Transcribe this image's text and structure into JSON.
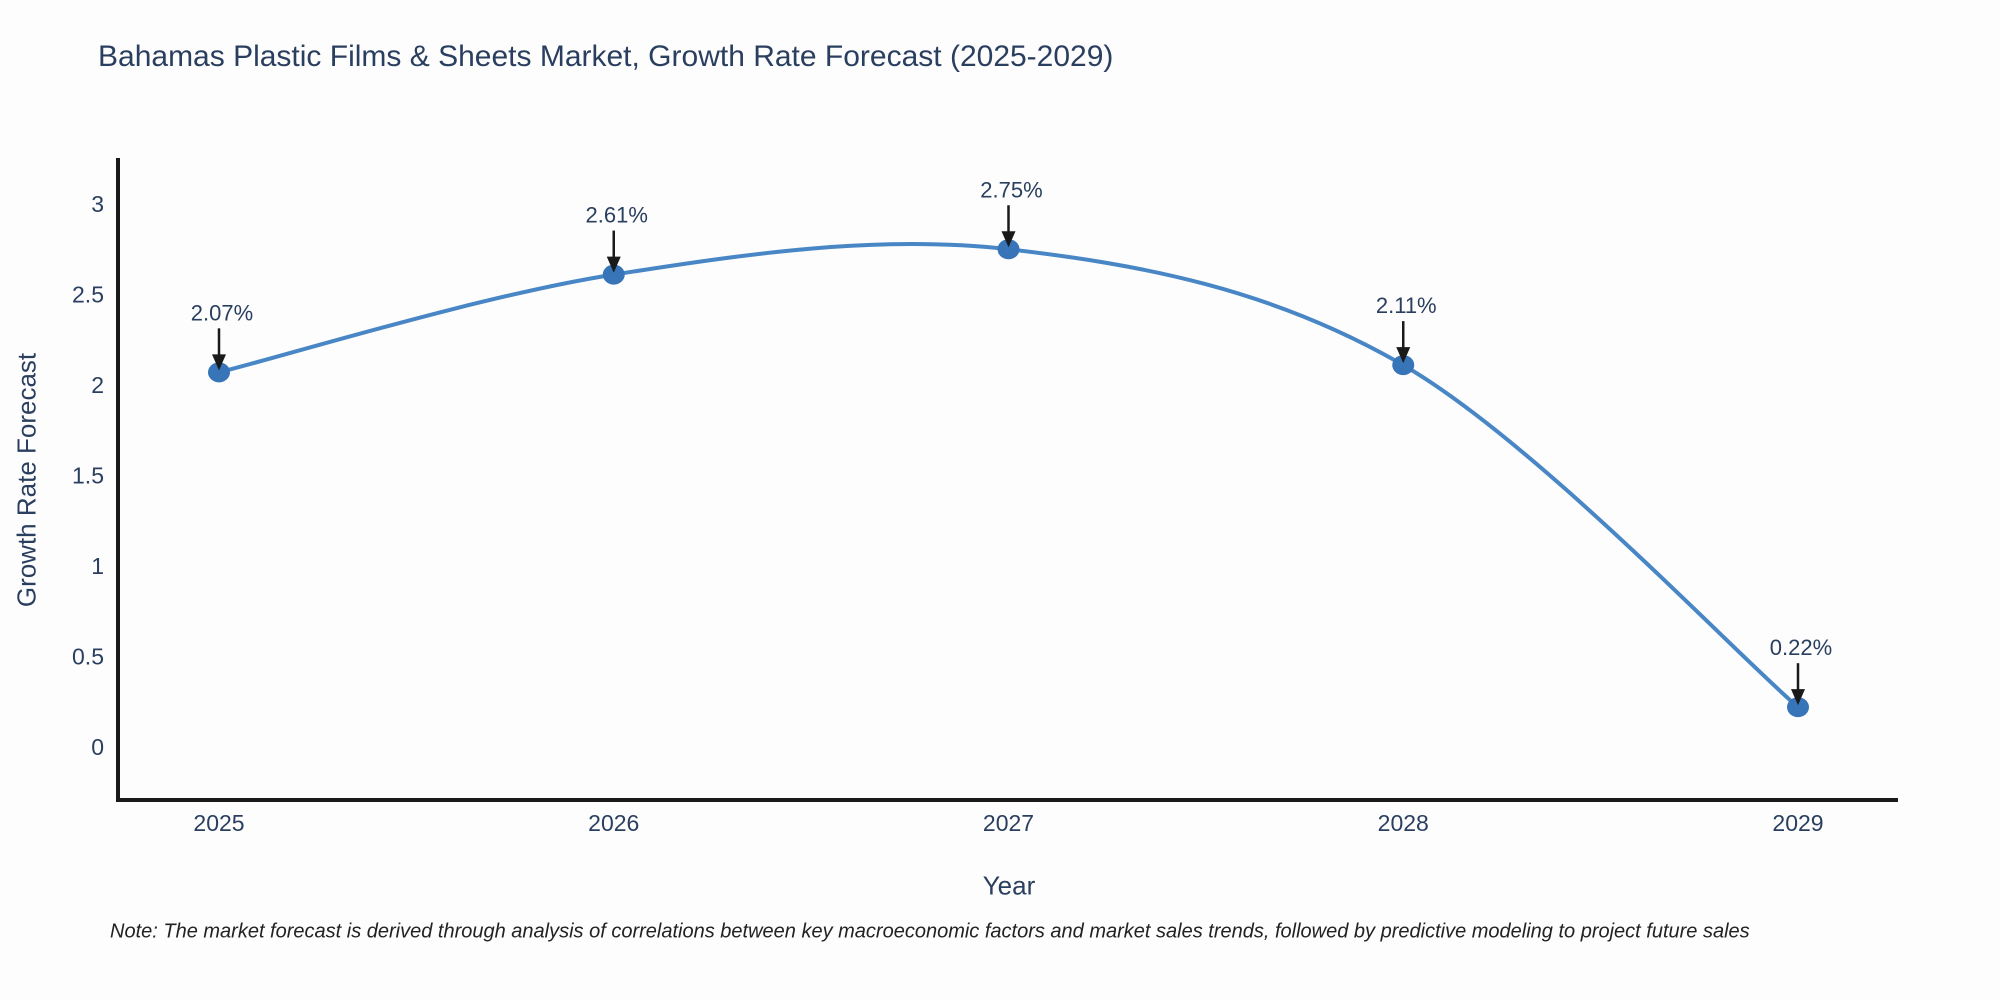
{
  "chart_data": {
    "type": "line",
    "title": "Bahamas Plastic Films & Sheets Market, Growth Rate Forecast (2025-2029)",
    "xlabel": "Year",
    "ylabel": "Growth Rate Forecast",
    "x": [
      "2025",
      "2026",
      "2027",
      "2028",
      "2029"
    ],
    "y": [
      2.07,
      2.61,
      2.75,
      2.11,
      0.22
    ],
    "point_labels": [
      "2.07%",
      "2.61%",
      "2.75%",
      "2.11%",
      "0.22%"
    ],
    "y_ticks": [
      0,
      0.5,
      1,
      1.5,
      2,
      2.5,
      3
    ],
    "ylim": [
      -0.3,
      3.3
    ],
    "line_shape": "spline",
    "grid": false,
    "legend": "none",
    "annotation_style": "value labels with downward black arrows above each data point",
    "note": "Note: The market forecast is derived through analysis of correlations between key macroeconomic factors and market sales trends, followed by predictive modeling to project future sales"
  },
  "colors": {
    "line": "#4886c5",
    "marker": "#3774b8",
    "text_slate": "#2a3f5f",
    "axis_line": "#1a1a1a",
    "arrow": "#1a1a1a",
    "note_text": "#222222",
    "background": "#fdfdfd"
  }
}
